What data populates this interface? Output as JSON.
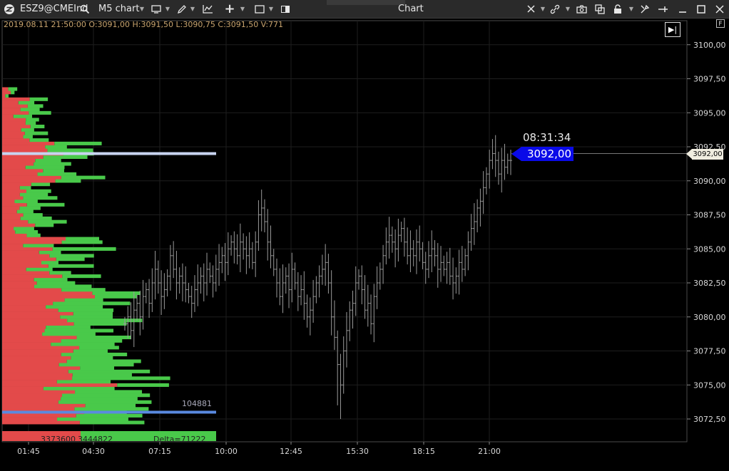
{
  "toolbar": {
    "symbol": "ESZ9@CMEInd",
    "chart_name": "M5 chart",
    "window_title": "Chart"
  },
  "header": {
    "ohlc_text": "2019.08.11 21:50:00 O:3091,00 H:3091,50 L:3090,75 C:3091,50 V:771",
    "f_badge": "F",
    "skip_glyph": "▶|"
  },
  "current": {
    "countdown": "08:31:34",
    "price": "3092,00",
    "axis_price": "3092,00"
  },
  "profile": {
    "poc_volume": "104881",
    "sell_total": "3373600",
    "buy_total": "3444822",
    "delta": "Delta=71222"
  },
  "colors": {
    "sell": "#e34a4a",
    "buy": "#49c94a",
    "poc_line": "#c8d4f0",
    "value_line": "#5a8ae0",
    "price_tag": "#0a0ae8",
    "bars": "#9a9a9a"
  },
  "chart_data": {
    "type": "ohlc",
    "y_ticks": [
      "3100,00",
      "3097,50",
      "3095,00",
      "3092,50",
      "3090,00",
      "3087,50",
      "3085,00",
      "3082,50",
      "3080,00",
      "3077,50",
      "3075,00",
      "3072,50"
    ],
    "x_ticks": [
      "01:45",
      "04:30",
      "07:15",
      "10:00",
      "12:45",
      "15:30",
      "18:15",
      "21:00"
    ],
    "ylim": [
      3071.0,
      3103.0
    ],
    "close_series": [
      3079.5,
      3080.0,
      3079.0,
      3080.5,
      3081.0,
      3080.0,
      3081.5,
      3082.0,
      3081.0,
      3082.5,
      3083.5,
      3082.5,
      3081.5,
      3082.0,
      3083.0,
      3084.5,
      3083.5,
      3082.5,
      3083.0,
      3082.5,
      3082.0,
      3081.5,
      3081.0,
      3082.0,
      3082.5,
      3083.0,
      3082.5,
      3083.5,
      3083.0,
      3082.5,
      3083.5,
      3084.0,
      3084.5,
      3084.0,
      3085.0,
      3085.5,
      3085.0,
      3084.5,
      3085.5,
      3085.0,
      3084.5,
      3085.0,
      3084.0,
      3085.5,
      3087.5,
      3088.0,
      3087.0,
      3085.5,
      3084.5,
      3083.5,
      3082.5,
      3081.5,
      3082.5,
      3083.0,
      3082.0,
      3083.5,
      3082.5,
      3081.5,
      3082.0,
      3081.0,
      3080.0,
      3080.5,
      3081.5,
      3082.5,
      3083.0,
      3083.5,
      3084.0,
      3082.5,
      3080.0,
      3078.5,
      3076.5,
      3075.0,
      3077.5,
      3079.0,
      3080.5,
      3081.0,
      3082.5,
      3083.0,
      3082.0,
      3080.5,
      3081.0,
      3079.5,
      3081.5,
      3082.5,
      3083.5,
      3084.5,
      3085.5,
      3086.0,
      3085.5,
      3085.0,
      3086.0,
      3086.5,
      3085.5,
      3084.5,
      3085.0,
      3084.5,
      3085.5,
      3085.0,
      3084.0,
      3083.5,
      3084.5,
      3085.0,
      3084.5,
      3083.5,
      3084.0,
      3083.5,
      3084.0,
      3083.0,
      3082.5,
      3083.0,
      3084.0,
      3083.5,
      3084.5,
      3085.5,
      3086.5,
      3087.0,
      3088.0,
      3088.5,
      3089.5,
      3090.5,
      3091.5,
      3092.0,
      3091.5,
      3090.5,
      3091.5,
      3091.0,
      3091.5,
      3091.5
    ]
  }
}
